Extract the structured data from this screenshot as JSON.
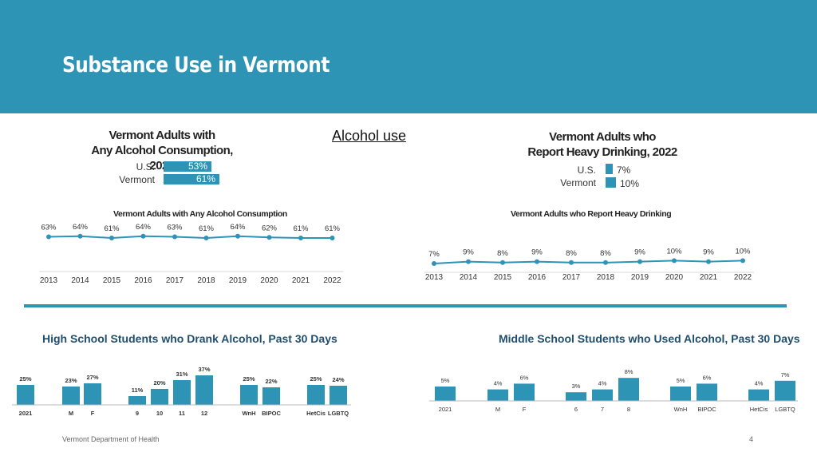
{
  "slide": {
    "title": "Substance Use in Vermont",
    "section_label": "Alcohol use",
    "footer": "Vermont Department of Health",
    "page_number": "4",
    "accent_color": "#2e94b5",
    "dark_text_color": "#1f4e6e"
  },
  "chart_data": [
    {
      "id": "any_alcohol_2022",
      "type": "bar",
      "orientation": "horizontal",
      "title": "Vermont Adults with Any Alcohol Consumption, 2022",
      "title_lines": [
        "Vermont Adults with",
        "Any Alcohol Consumption, 2022"
      ],
      "categories": [
        "U.S.",
        "Vermont"
      ],
      "values": [
        53,
        61
      ],
      "value_labels": [
        "53%",
        "61%"
      ],
      "unit": "%"
    },
    {
      "id": "heavy_drinking_2022",
      "type": "bar",
      "orientation": "horizontal",
      "title": "Vermont Adults who Report Heavy Drinking, 2022",
      "title_lines": [
        "Vermont Adults who",
        "Report Heavy Drinking, 2022"
      ],
      "categories": [
        "U.S.",
        "Vermont"
      ],
      "values": [
        7,
        10
      ],
      "value_labels": [
        "7%",
        "10%"
      ],
      "unit": "%"
    },
    {
      "id": "any_alcohol_trend",
      "type": "line",
      "title": "Vermont Adults with Any Alcohol Consumption",
      "x": [
        "2013",
        "2014",
        "2015",
        "2016",
        "2017",
        "2018",
        "2019",
        "2020",
        "2021",
        "2022"
      ],
      "values": [
        63,
        64,
        61,
        64,
        63,
        61,
        64,
        62,
        61,
        61
      ],
      "value_labels": [
        "63%",
        "64%",
        "61%",
        "64%",
        "63%",
        "61%",
        "64%",
        "62%",
        "61%",
        "61%"
      ],
      "ylim": [
        0,
        100
      ]
    },
    {
      "id": "heavy_drinking_trend",
      "type": "line",
      "title": "Vermont Adults who Report Heavy Drinking",
      "x": [
        "2013",
        "2014",
        "2015",
        "2016",
        "2017",
        "2018",
        "2019",
        "2020",
        "2021",
        "2022"
      ],
      "values": [
        7,
        9,
        8,
        9,
        8,
        8,
        9,
        10,
        9,
        10
      ],
      "value_labels": [
        "7%",
        "9%",
        "8%",
        "9%",
        "8%",
        "8%",
        "9%",
        "10%",
        "9%",
        "10%"
      ],
      "ylim": [
        0,
        100
      ]
    },
    {
      "id": "hs_drank_alcohol",
      "type": "bar",
      "title": "High School Students who Drank Alcohol, Past 30 Days",
      "categories": [
        "2021",
        "M",
        "F",
        "9",
        "10",
        "11",
        "12",
        "WnH",
        "BIPOC",
        "HetCis",
        "LGBTQ"
      ],
      "groups": [
        [
          "2021"
        ],
        [
          "M",
          "F"
        ],
        [
          "9",
          "10",
          "11",
          "12"
        ],
        [
          "WnH",
          "BIPOC"
        ],
        [
          "HetCis",
          "LGBTQ"
        ]
      ],
      "values": [
        25,
        23,
        27,
        11,
        20,
        31,
        37,
        25,
        22,
        25,
        24
      ],
      "value_labels": [
        "25%",
        "23%",
        "27%",
        "11%",
        "20%",
        "31%",
        "37%",
        "25%",
        "22%",
        "25%",
        "24%"
      ],
      "ylim": [
        0,
        40
      ]
    },
    {
      "id": "ms_used_alcohol",
      "type": "bar",
      "title": "Middle School Students who Used Alcohol, Past 30 Days",
      "categories": [
        "2021",
        "M",
        "F",
        "6",
        "7",
        "8",
        "WnH",
        "BIPOC",
        "HetCis",
        "LGBTQ"
      ],
      "groups": [
        [
          "2021"
        ],
        [
          "M",
          "F"
        ],
        [
          "6",
          "7",
          "8"
        ],
        [
          "WnH",
          "BIPOC"
        ],
        [
          "HetCis",
          "LGBTQ"
        ]
      ],
      "values": [
        5,
        4,
        6,
        3,
        4,
        8,
        5,
        6,
        4,
        7
      ],
      "value_labels": [
        "5%",
        "4%",
        "6%",
        "3%",
        "4%",
        "8%",
        "5%",
        "6%",
        "4%",
        "7%"
      ],
      "ylim": [
        0,
        8
      ]
    }
  ]
}
